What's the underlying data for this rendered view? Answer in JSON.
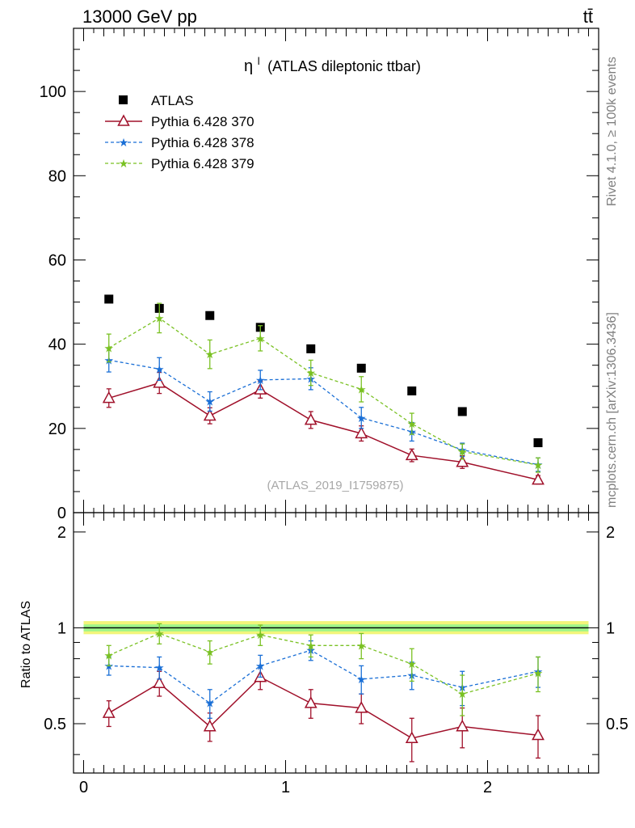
{
  "header": {
    "left": "13000 GeV pp",
    "right": "tt̄"
  },
  "sidebar": {
    "upper": "Rivet 4.1.0, ≥ 100k events",
    "lower": "mcplots.cern.ch [arXiv:1306.3436]"
  },
  "chart_data": [
    {
      "type": "scatter",
      "panel": "main",
      "title": "ηˡ (ATLAS dileptonic ttbar)",
      "title_main": "η",
      "title_sup": "l",
      "title_rest": "(ATLAS dileptonic ttbar)",
      "watermark": "(ATLAS_2019_I1759875)",
      "xlim": [
        -0.05,
        2.55
      ],
      "ylim": [
        0,
        115
      ],
      "yticks": [
        0,
        20,
        40,
        60,
        80,
        100
      ],
      "ytick_labels": [
        "0",
        "20",
        "40",
        "60",
        "80",
        "100"
      ],
      "legend_position": "top-left",
      "x": [
        0.125,
        0.375,
        0.625,
        0.875,
        1.125,
        1.375,
        1.625,
        1.875,
        2.25
      ],
      "series": [
        {
          "name": "ATLAS",
          "color": "#000000",
          "marker": "square",
          "values": [
            50.7,
            48.5,
            46.8,
            44.0,
            38.9,
            34.3,
            28.9,
            24.0,
            16.6
          ]
        },
        {
          "name": "Pythia 6.428 370",
          "color": "#a0102a",
          "marker": "triangle",
          "line": "solid",
          "values": [
            27.2,
            30.8,
            23.0,
            29.2,
            22.0,
            18.8,
            13.6,
            12.0,
            7.8
          ],
          "errors": [
            2.2,
            2.5,
            1.9,
            2.0,
            2.0,
            1.8,
            1.5,
            1.5,
            1.0
          ]
        },
        {
          "name": "Pythia 6.428 378",
          "color": "#1a6fd6",
          "marker": "star",
          "line": "dashed",
          "values": [
            36.2,
            34.1,
            26.4,
            31.5,
            31.8,
            22.5,
            19.2,
            14.9,
            11.4
          ],
          "errors": [
            2.8,
            2.7,
            2.3,
            2.3,
            2.6,
            2.5,
            2.2,
            1.6,
            1.6
          ]
        },
        {
          "name": "Pythia 6.428 379",
          "color": "#7ac123",
          "marker": "star",
          "line": "dashed",
          "values": [
            39.1,
            46.2,
            37.6,
            41.4,
            33.2,
            29.3,
            21.1,
            14.5,
            11.3
          ],
          "errors": [
            3.3,
            3.5,
            3.4,
            3.0,
            3.0,
            3.0,
            2.5,
            1.8,
            1.7
          ]
        }
      ]
    },
    {
      "type": "scatter",
      "panel": "ratio",
      "ylabel": "Ratio to ATLAS",
      "xlim": [
        -0.05,
        2.55
      ],
      "ylim": [
        0.35,
        2.3
      ],
      "yscale": "log",
      "yticks": [
        0.5,
        1,
        2
      ],
      "ytick_labels": [
        "0.5",
        "1",
        "2"
      ],
      "xticks": [
        0,
        1,
        2
      ],
      "xtick_labels": [
        "0",
        "1",
        "2"
      ],
      "band_inner": [
        0.975,
        1.025
      ],
      "band_outer": [
        0.955,
        1.05
      ],
      "x": [
        0.125,
        0.375,
        0.625,
        0.875,
        1.125,
        1.375,
        1.625,
        1.875,
        2.25
      ],
      "series": [
        {
          "name": "Pythia 6.428 370",
          "color": "#a0102a",
          "marker": "triangle",
          "line": "solid",
          "values": [
            0.54,
            0.67,
            0.49,
            0.7,
            0.58,
            0.56,
            0.45,
            0.49,
            0.46
          ],
          "errors": [
            0.05,
            0.06,
            0.05,
            0.06,
            0.06,
            0.06,
            0.07,
            0.07,
            0.07
          ]
        },
        {
          "name": "Pythia 6.428 378",
          "color": "#1a6fd6",
          "marker": "star",
          "line": "dashed",
          "values": [
            0.76,
            0.75,
            0.58,
            0.76,
            0.85,
            0.69,
            0.71,
            0.65,
            0.73
          ],
          "errors": [
            0.05,
            0.06,
            0.06,
            0.06,
            0.06,
            0.07,
            0.07,
            0.08,
            0.08
          ]
        },
        {
          "name": "Pythia 6.428 379",
          "color": "#7ac123",
          "marker": "star",
          "line": "dashed",
          "values": [
            0.82,
            0.96,
            0.84,
            0.95,
            0.88,
            0.88,
            0.77,
            0.62,
            0.72
          ],
          "errors": [
            0.06,
            0.07,
            0.07,
            0.07,
            0.07,
            0.08,
            0.09,
            0.09,
            0.09
          ]
        }
      ]
    }
  ]
}
